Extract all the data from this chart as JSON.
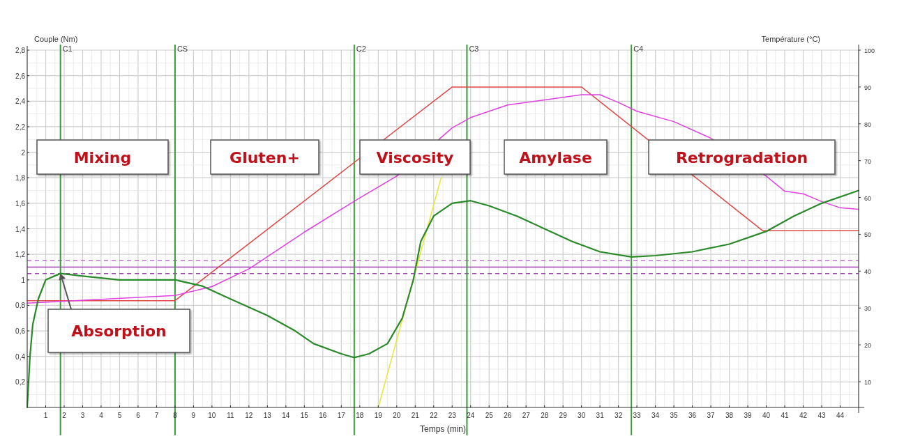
{
  "chart_data": {
    "type": "line",
    "xlabel": "Temps (min)",
    "ylabel": "Couple (Nm)",
    "y2label": "Température (°C)",
    "xlim": [
      0,
      45
    ],
    "xticks": [
      1,
      2,
      3,
      4,
      5,
      6,
      7,
      8,
      9,
      10,
      11,
      12,
      13,
      14,
      15,
      16,
      17,
      18,
      19,
      20,
      21,
      22,
      23,
      24,
      25,
      26,
      27,
      28,
      29,
      30,
      31,
      32,
      33,
      34,
      35,
      36,
      37,
      38,
      39,
      40,
      41,
      42,
      43,
      44
    ],
    "ylim": [
      0,
      2.8
    ],
    "yticks": [
      {
        "value": 0.2,
        "label": "0,2"
      },
      {
        "value": 0.4,
        "label": "0,4"
      },
      {
        "value": 0.6,
        "label": "0,6"
      },
      {
        "value": 0.8,
        "label": "0,8"
      },
      1,
      {
        "value": 1.2,
        "label": "1,2"
      },
      {
        "value": 1.4,
        "label": "1,4"
      },
      {
        "value": 1.6,
        "label": "1,6"
      },
      {
        "value": 1.8,
        "label": "1,8"
      },
      2,
      {
        "value": 2.2,
        "label": "2,2"
      },
      {
        "value": 2.4,
        "label": "2,4"
      },
      {
        "value": 2.6,
        "label": "2,6"
      },
      {
        "value": 2.8,
        "label": "2,8"
      }
    ],
    "y2lim": [
      3,
      100
    ],
    "y2ticks": [
      10,
      20,
      30,
      40,
      50,
      60,
      70,
      80,
      90,
      100
    ],
    "grid": true,
    "marker": "none",
    "line_style": "solid",
    "series": [
      {
        "color": "#e04848",
        "axis": "y2",
        "x": [
          0,
          8,
          23,
          30,
          39.8,
          45
        ],
        "values": [
          32,
          32,
          90,
          90,
          51,
          51
        ]
      },
      {
        "color": "#e040e0",
        "axis": "y2",
        "x": [
          0,
          8,
          10,
          12,
          15,
          18,
          20,
          23,
          24,
          26,
          28,
          30,
          31,
          32,
          33,
          35,
          37,
          40,
          41,
          42,
          43,
          44,
          45
        ],
        "values": [
          31.3,
          33.4,
          35.8,
          40.6,
          50.6,
          59.9,
          65.8,
          78.9,
          81.7,
          85.1,
          86.5,
          87.9,
          87.9,
          85.8,
          83.4,
          80.6,
          76.1,
          65.8,
          61.7,
          61,
          58.9,
          57.2,
          56.8
        ]
      },
      {
        "color": "#e8e830",
        "x": [
          19,
          22.4
        ],
        "values": [
          0,
          1.8
        ]
      },
      {
        "color": "#2a8a2a",
        "x": [
          0,
          0.15,
          0.3,
          0.6,
          1,
          1.8,
          3,
          5,
          8,
          9.5,
          11,
          13,
          14.5,
          15.5,
          17,
          17.7,
          18.5,
          19.5,
          20.3,
          20.9,
          21.3,
          22,
          23,
          24,
          25,
          26.5,
          28,
          29.5,
          31,
          32.7,
          34,
          36,
          38,
          40,
          41.5,
          43,
          45
        ],
        "values": [
          0,
          0.4,
          0.65,
          0.85,
          1,
          1.05,
          1.03,
          1,
          1,
          0.95,
          0.85,
          0.72,
          0.6,
          0.5,
          0.42,
          0.39,
          0.42,
          0.5,
          0.7,
          1,
          1.3,
          1.5,
          1.6,
          1.62,
          1.58,
          1.5,
          1.4,
          1.3,
          1.22,
          1.18,
          1.19,
          1.22,
          1.28,
          1.38,
          1.5,
          1.6,
          1.7
        ]
      }
    ],
    "ref_lines": [
      {
        "axis": "y",
        "value": 1.15,
        "color": "#c070d0",
        "line_style": "dashed"
      },
      {
        "axis": "y",
        "value": 1.1,
        "color": "#a040b0",
        "line_style": "solid"
      },
      {
        "axis": "y",
        "value": 1.05,
        "color": "#a040b0",
        "line_style": "dashed"
      },
      {
        "axis": "x",
        "value": 1.8,
        "label": "C1",
        "color": "#3a9a3a"
      },
      {
        "axis": "x",
        "value": 8,
        "label": "CS",
        "color": "#3a9a3a"
      },
      {
        "axis": "x",
        "value": 17.7,
        "label": "C2",
        "color": "#3a9a3a"
      },
      {
        "axis": "x",
        "value": 23.8,
        "label": "C3",
        "color": "#3a9a3a"
      },
      {
        "axis": "x",
        "value": 32.7,
        "label": "C4",
        "color": "#3a9a3a"
      }
    ],
    "annotations": [
      "Mixing",
      "Gluten+",
      "Viscosity",
      "Amylase",
      "Retrogradation",
      {
        "text": "Absorption",
        "x": 1.8,
        "y": 1.05
      }
    ]
  }
}
